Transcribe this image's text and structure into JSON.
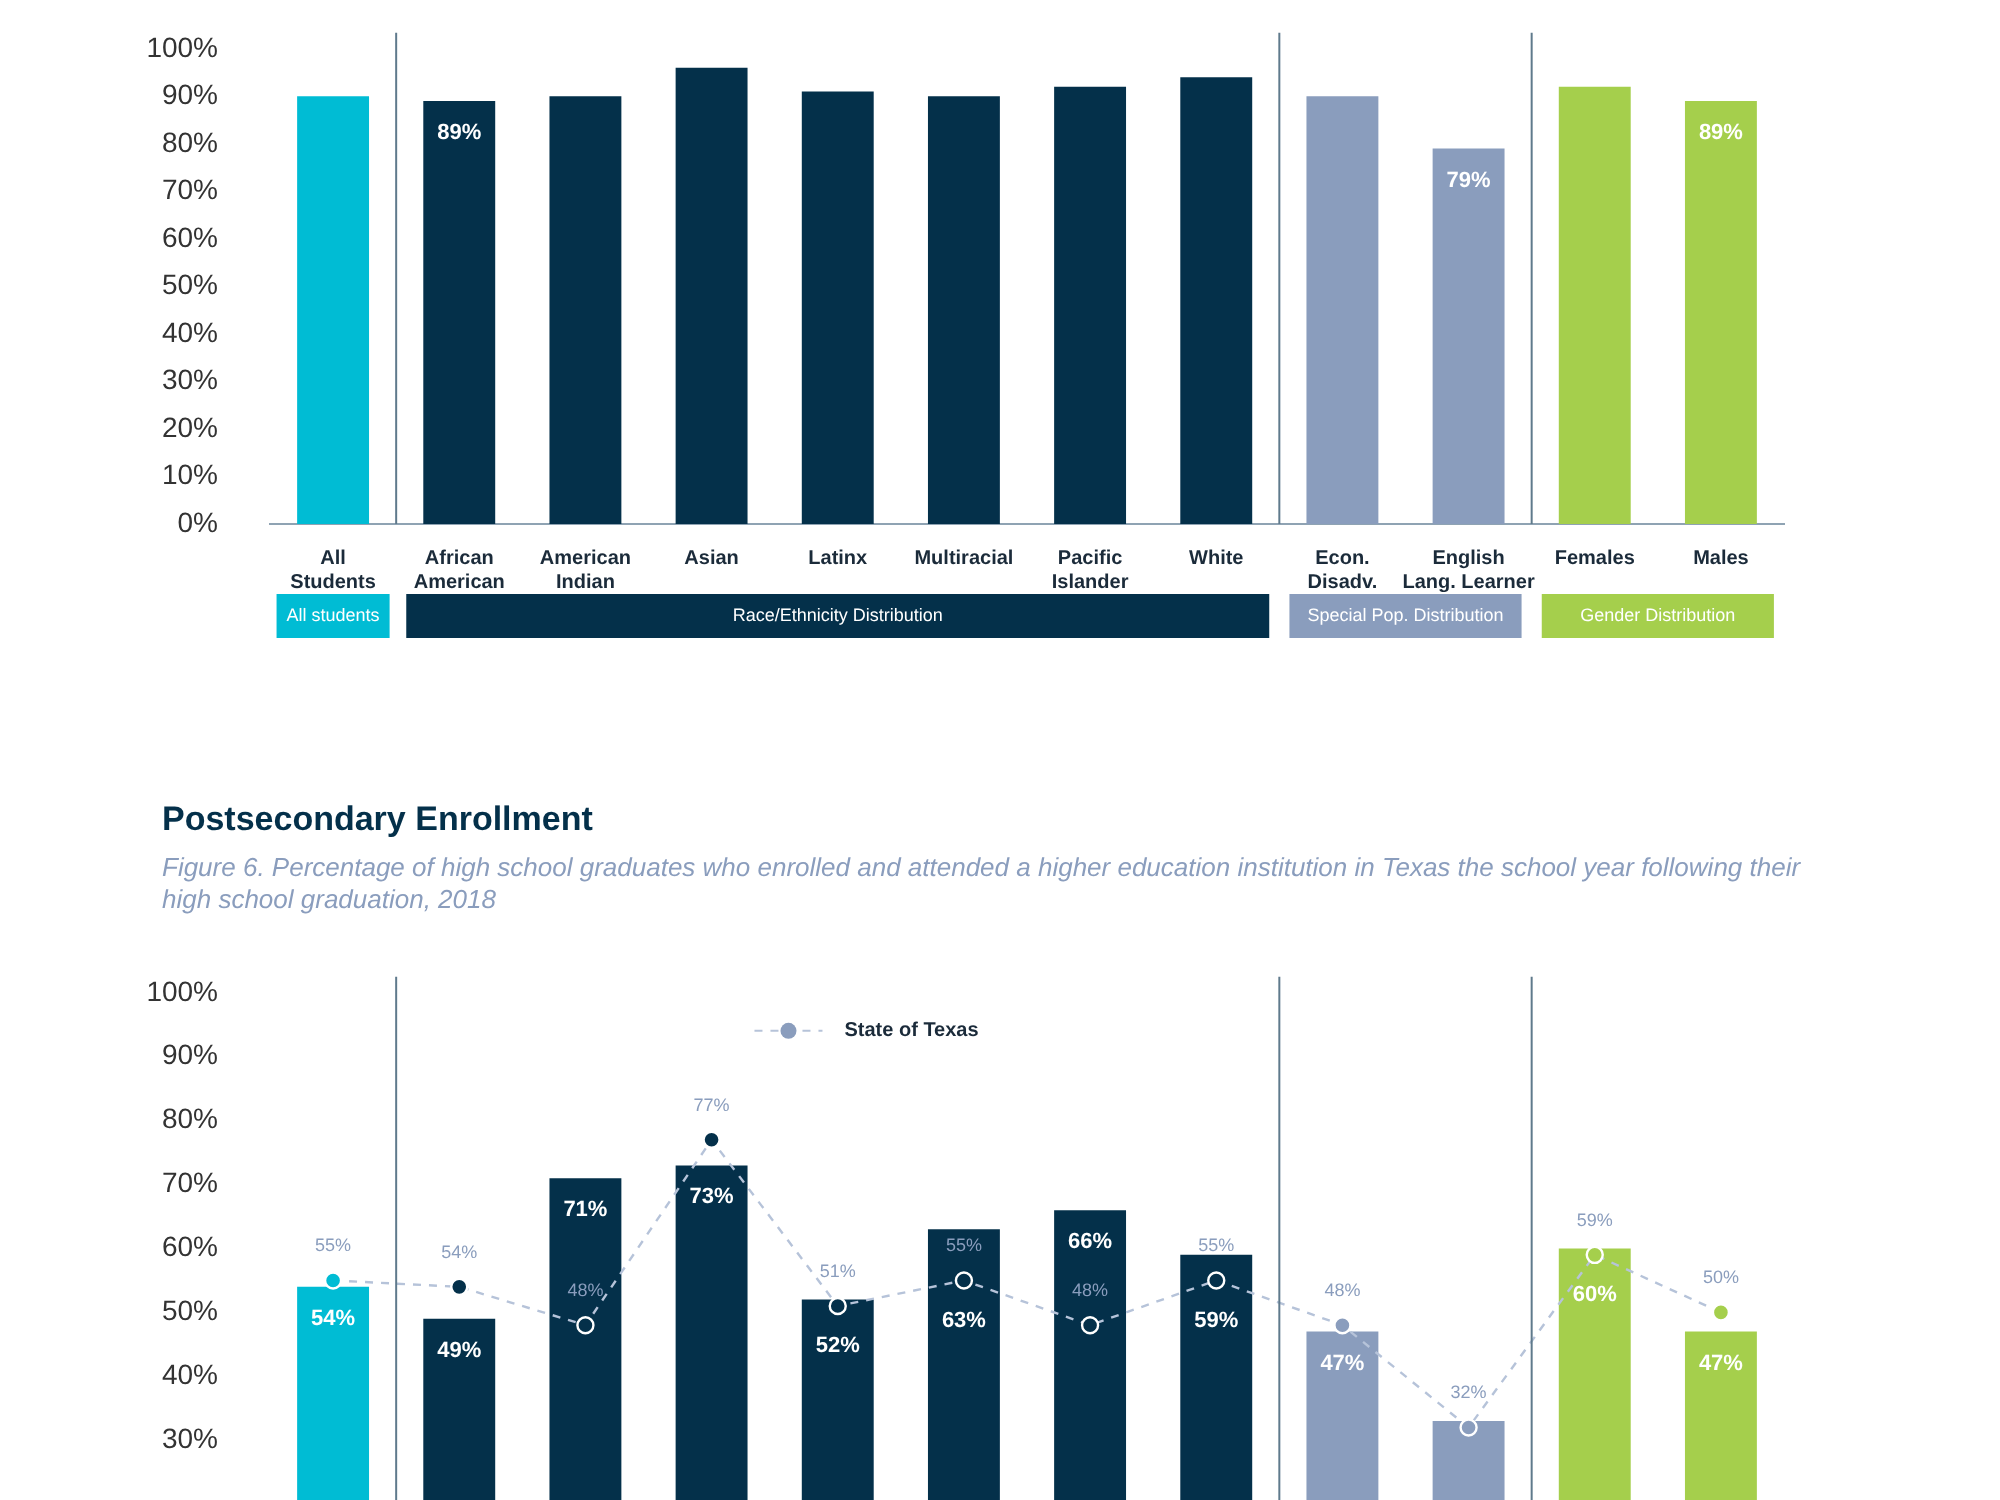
{
  "chart_data": [
    {
      "type": "bar",
      "categories": [
        "All Students",
        "African American",
        "American Indian",
        "Asian",
        "Latinx",
        "Multiracial",
        "Pacific Islander",
        "White",
        "Econ. Disadv.",
        "English Lang. Learner",
        "Females",
        "Males"
      ],
      "ylim": [
        0,
        100
      ],
      "yticks": [
        {
          "value": 0,
          "label": "0%"
        },
        {
          "value": 10,
          "label": "10%"
        },
        {
          "value": 20,
          "label": "20%"
        },
        {
          "value": 30,
          "label": "30%"
        },
        {
          "value": 40,
          "label": "40%"
        },
        {
          "value": 50,
          "label": "50%"
        },
        {
          "value": 60,
          "label": "60%"
        },
        {
          "value": 70,
          "label": "70%"
        },
        {
          "value": 80,
          "label": "80%"
        },
        {
          "value": 90,
          "label": "90%"
        },
        {
          "value": 100,
          "label": "100%"
        }
      ],
      "legend": "bottom",
      "series": [
        {
          "name": "All students",
          "color": "#00bcd4",
          "values": [
            90,
            null,
            null,
            null,
            null,
            null,
            null,
            null,
            null,
            null,
            null,
            null
          ]
        },
        {
          "name": "Race/Ethnicity Distribution",
          "color": "#04304a",
          "values": [
            null,
            89,
            90,
            96,
            91,
            90,
            92,
            94,
            null,
            null,
            null,
            null
          ],
          "value_labels": [
            null,
            "89%",
            null,
            null,
            null,
            null,
            null,
            null,
            null,
            null,
            null,
            null
          ]
        },
        {
          "name": "Special Pop. Distribution",
          "color": "#8a9dbd",
          "values": [
            null,
            null,
            null,
            null,
            null,
            null,
            null,
            null,
            90,
            79,
            null,
            null
          ],
          "value_labels": [
            null,
            null,
            null,
            null,
            null,
            null,
            null,
            null,
            null,
            "79%",
            null,
            null
          ]
        },
        {
          "name": "Gender Distribution",
          "color": "#a5cf4c",
          "values": [
            null,
            null,
            null,
            null,
            null,
            null,
            null,
            null,
            null,
            null,
            92,
            89
          ],
          "value_labels": [
            null,
            null,
            null,
            null,
            null,
            null,
            null,
            null,
            null,
            null,
            null,
            "89%"
          ]
        }
      ]
    },
    {
      "type": "bar",
      "title": "Postsecondary Enrollment",
      "subtitle": "Figure 6. Percentage of high school graduates who enrolled and attended a higher education institution in Texas the school year following their high school graduation, 2018",
      "categories": [
        null,
        null,
        null,
        null,
        null,
        null,
        null,
        null,
        null,
        null,
        null,
        null
      ],
      "ylim": [
        0,
        100
      ],
      "yticks": [
        {
          "value": 30,
          "label": "30%"
        },
        {
          "value": 40,
          "label": "40%"
        },
        {
          "value": 50,
          "label": "50%"
        },
        {
          "value": 60,
          "label": "60%"
        },
        {
          "value": 70,
          "label": "70%"
        },
        {
          "value": 80,
          "label": "80%"
        },
        {
          "value": 90,
          "label": "90%"
        },
        {
          "value": 100,
          "label": "100%"
        }
      ],
      "legend": "top",
      "series": [
        {
          "color": "#00bcd4",
          "values": [
            54,
            null,
            null,
            null,
            null,
            null,
            null,
            null,
            null,
            null,
            null,
            null
          ],
          "value_labels": [
            "54%",
            null,
            null,
            null,
            null,
            null,
            null,
            null,
            null,
            null,
            null,
            null
          ]
        },
        {
          "color": "#04304a",
          "values": [
            null,
            49,
            71,
            73,
            52,
            63,
            66,
            59,
            null,
            null,
            null,
            null
          ],
          "value_labels": [
            null,
            "49%",
            "71%",
            "73%",
            "52%",
            "63%",
            "66%",
            "59%",
            null,
            null,
            null,
            null
          ]
        },
        {
          "color": "#8a9dbd",
          "values": [
            null,
            null,
            null,
            null,
            null,
            null,
            null,
            null,
            47,
            33,
            null,
            null
          ],
          "value_labels": [
            null,
            null,
            null,
            null,
            null,
            null,
            null,
            null,
            "47%",
            null,
            null,
            null
          ]
        },
        {
          "color": "#a5cf4c",
          "values": [
            null,
            null,
            null,
            null,
            null,
            null,
            null,
            null,
            null,
            null,
            60,
            47
          ],
          "value_labels": [
            null,
            null,
            null,
            null,
            null,
            null,
            null,
            null,
            null,
            null,
            "60%",
            "47%"
          ]
        },
        {
          "type": "line",
          "name": "State of Texas",
          "color": "#b6c3d9",
          "marker": "circle",
          "line_style": "dashed",
          "colors": [
            "#00bcd4",
            "#04304a",
            "#04304a",
            "#04304a",
            "#04304a",
            "#04304a",
            "#04304a",
            "#04304a",
            "#8a9dbd",
            "#8a9dbd",
            "#a5cf4c",
            "#a5cf4c"
          ],
          "values": [
            55,
            54,
            48,
            77,
            51,
            55,
            48,
            55,
            48,
            32,
            59,
            50
          ],
          "value_labels": [
            "55%",
            "54%",
            "48%",
            "77%",
            "51%",
            "55%",
            "48%",
            "55%",
            "48%",
            "32%",
            "59%",
            "50%"
          ]
        }
      ]
    }
  ]
}
